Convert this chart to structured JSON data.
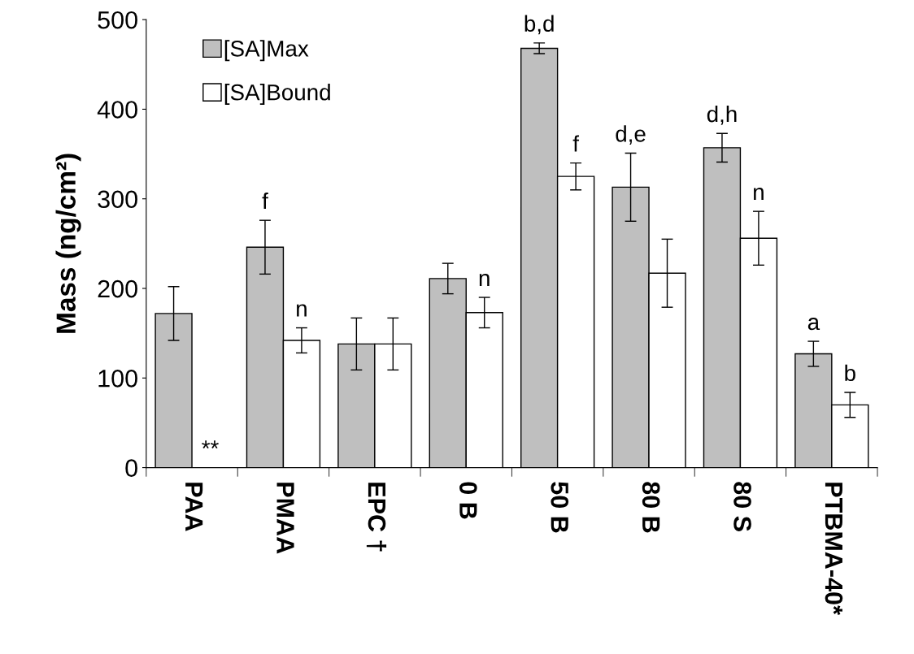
{
  "chart_data": {
    "type": "bar",
    "ylabel": "Mass (ng/cm²)",
    "categories": [
      "PAA",
      "PMAA",
      "EPC †",
      "0 B",
      "50 B",
      "80 B",
      "80 S",
      "PTBMA-40*"
    ],
    "series": [
      {
        "name": "[SA]Max",
        "color": "#bfbfbf",
        "values": [
          172,
          246,
          138,
          211,
          468,
          313,
          357,
          127
        ],
        "errors": [
          30,
          30,
          29,
          17,
          6,
          38,
          16,
          14
        ]
      },
      {
        "name": "[SA]Bound",
        "color": "#ffffff",
        "values": [
          null,
          142,
          138,
          173,
          325,
          217,
          256,
          70
        ],
        "errors": [
          null,
          14,
          29,
          17,
          15,
          38,
          30,
          14
        ]
      }
    ],
    "ylim": [
      0,
      500
    ],
    "yticks": [
      0,
      100,
      200,
      300,
      400,
      500
    ],
    "grid": false,
    "legend": "top left",
    "annotations": [
      {
        "text": "**",
        "x": "PAA",
        "y": 0
      },
      {
        "text": "f",
        "x": "PMAA",
        "y": 246
      },
      {
        "text": "n",
        "x": "PMAA",
        "y": 142
      },
      {
        "text": "n",
        "x": "0 B",
        "y": 173
      },
      {
        "text": "b,d",
        "x": "50 B",
        "y": 468
      },
      {
        "text": "f",
        "x": "50 B",
        "y": 325
      },
      {
        "text": "d,e",
        "x": "80 B",
        "y": 313
      },
      {
        "text": "d,h",
        "x": "80 S",
        "y": 357
      },
      {
        "text": "n",
        "x": "80 S",
        "y": 256
      },
      {
        "text": "a",
        "x": "PTBMA-40*",
        "y": 127
      },
      {
        "text": "b",
        "x": "PTBMA-40*",
        "y": 70
      }
    ]
  }
}
